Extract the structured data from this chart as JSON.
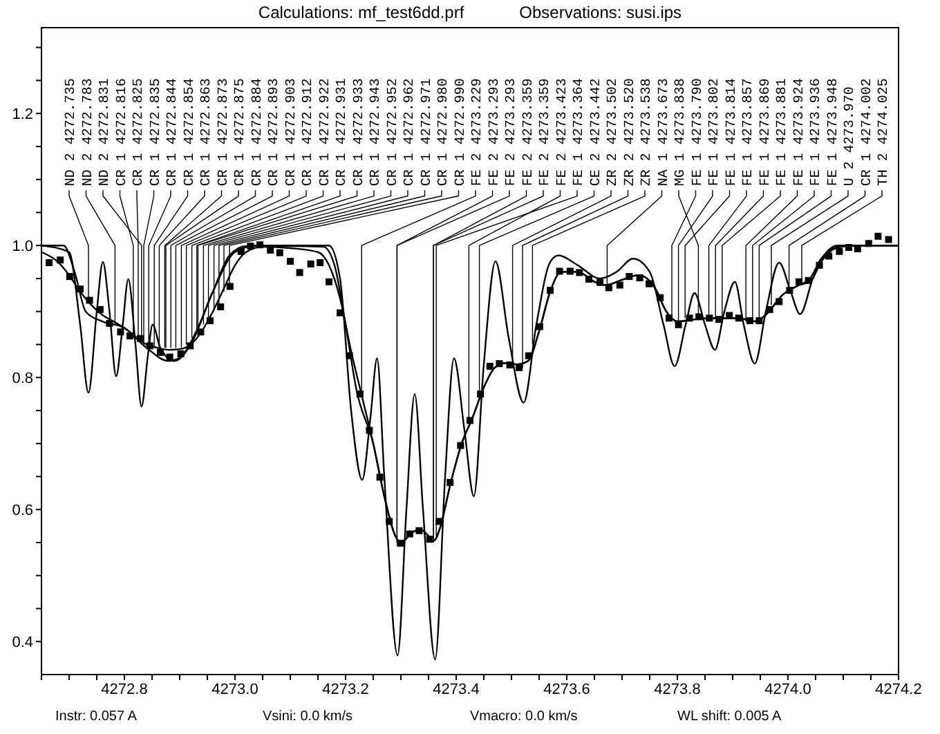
{
  "chart_data": {
    "type": "line",
    "title": "Calculations: mf_test6dd.prf",
    "subtitle": "Observations: susi.ips",
    "xlim": [
      4272.65,
      4274.2
    ],
    "ylim": [
      0.35,
      1.33
    ],
    "xticks": [
      {
        "value": 4272.65,
        "label": null
      },
      {
        "value": 4272.7,
        "label": null
      },
      {
        "value": 4272.75,
        "label": null
      },
      4272.8,
      {
        "value": 4272.85,
        "label": null
      },
      {
        "value": 4272.9,
        "label": null
      },
      {
        "value": 4272.95,
        "label": null
      },
      {
        "value": 4273,
        "label": "4273.0"
      },
      {
        "value": 4273.05,
        "label": null
      },
      {
        "value": 4273.1,
        "label": null
      },
      {
        "value": 4273.15,
        "label": null
      },
      4273.2,
      {
        "value": 4273.25,
        "label": null
      },
      {
        "value": 4273.3,
        "label": null
      },
      {
        "value": 4273.35,
        "label": null
      },
      4273.4,
      {
        "value": 4273.45,
        "label": null
      },
      {
        "value": 4273.5,
        "label": null
      },
      {
        "value": 4273.55,
        "label": null
      },
      4273.6,
      {
        "value": 4273.65,
        "label": null
      },
      {
        "value": 4273.7,
        "label": null
      },
      {
        "value": 4273.75,
        "label": null
      },
      4273.8,
      {
        "value": 4273.85,
        "label": null
      },
      {
        "value": 4273.9,
        "label": null
      },
      {
        "value": 4273.95,
        "label": null
      },
      {
        "value": 4274,
        "label": "4274.0"
      },
      {
        "value": 4274.05,
        "label": null
      },
      {
        "value": 4274.1,
        "label": null
      },
      {
        "value": 4274.15,
        "label": null
      },
      4274.2
    ],
    "yticks": [
      0.4,
      {
        "value": 0.45,
        "label": null
      },
      {
        "value": 0.5,
        "label": null
      },
      {
        "value": 0.55,
        "label": null
      },
      0.6,
      {
        "value": 0.65,
        "label": null
      },
      {
        "value": 0.7,
        "label": null
      },
      {
        "value": 0.75,
        "label": null
      },
      0.8,
      {
        "value": 0.85,
        "label": null
      },
      {
        "value": 0.9,
        "label": null
      },
      {
        "value": 0.95,
        "label": null
      },
      {
        "value": 1,
        "label": "1.0"
      },
      {
        "value": 1.05,
        "label": null
      },
      {
        "value": 1.1,
        "label": null
      },
      {
        "value": 1.15,
        "label": null
      },
      1.2,
      {
        "value": 1.25,
        "label": null
      },
      {
        "value": 1.3,
        "label": null
      }
    ],
    "series": [
      {
        "color": "#000000",
        "marker": "none",
        "x": [
          4272.65,
          4272.69,
          4272.71,
          4272.73,
          4272.76,
          4272.8,
          4272.84,
          4272.88,
          4272.9,
          4272.93,
          4272.96,
          4272.99,
          4273.02,
          4273.1,
          4273.16,
          4273.18,
          4273.2,
          4273.22,
          4273.25,
          4273.27,
          4273.29,
          4273.3,
          4273.32,
          4273.335,
          4273.35,
          4273.36,
          4273.37,
          4273.39,
          4273.41,
          4273.43,
          4273.45,
          4273.47,
          4273.49,
          4273.51,
          4273.53,
          4273.55,
          4273.57,
          4273.59,
          4273.62,
          4273.65,
          4273.67,
          4273.7,
          4273.73,
          4273.76,
          4273.78,
          4273.8,
          4273.83,
          4273.87,
          4273.91,
          4273.94,
          4273.96,
          4273.99,
          4274.02,
          4274.04,
          4274.06,
          4274.09,
          4274.12,
          4274.2
        ],
        "values": [
          1.0,
          1.0,
          0.96,
          0.9,
          0.885,
          0.875,
          0.845,
          0.825,
          0.83,
          0.87,
          0.93,
          0.985,
          0.999,
          0.999,
          0.998,
          0.97,
          0.88,
          0.78,
          0.7,
          0.62,
          0.56,
          0.55,
          0.565,
          0.57,
          0.56,
          0.553,
          0.57,
          0.64,
          0.7,
          0.74,
          0.785,
          0.815,
          0.822,
          0.82,
          0.825,
          0.87,
          0.93,
          0.96,
          0.96,
          0.945,
          0.94,
          0.948,
          0.955,
          0.935,
          0.9,
          0.885,
          0.888,
          0.89,
          0.89,
          0.885,
          0.895,
          0.925,
          0.94,
          0.95,
          0.98,
          0.998,
          1.0,
          1.0
        ]
      },
      {
        "color": "#000000",
        "marker": "none",
        "x": [
          4272.65,
          4272.68,
          4272.7,
          4272.72,
          4272.74,
          4272.76,
          4272.78,
          4272.8,
          4272.82,
          4272.84,
          4272.86,
          4272.88,
          4272.9,
          4272.92,
          4272.94,
          4272.96,
          4272.98,
          4273.0,
          4273.02,
          4273.05,
          4273.1,
          4273.15,
          4273.17,
          4273.19,
          4273.21,
          4273.23,
          4273.25,
          4273.27,
          4273.29,
          4273.3,
          4273.32,
          4273.335,
          4273.35,
          4273.36,
          4273.37,
          4273.39,
          4273.41,
          4273.43,
          4273.45,
          4273.47,
          4273.49,
          4273.51,
          4273.53,
          4273.55,
          4273.57,
          4273.59,
          4273.62,
          4273.65,
          4273.67,
          4273.7,
          4273.73,
          4273.76,
          4273.78,
          4273.8,
          4273.83,
          4273.87,
          4273.91,
          4273.94,
          4273.96,
          4273.99,
          4274.02,
          4274.04,
          4274.06,
          4274.09,
          4274.12,
          4274.2
        ],
        "values": [
          0.99,
          0.975,
          0.955,
          0.93,
          0.91,
          0.895,
          0.885,
          0.875,
          0.862,
          0.85,
          0.845,
          0.842,
          0.843,
          0.85,
          0.87,
          0.9,
          0.935,
          0.97,
          0.99,
          0.998,
          0.996,
          0.99,
          0.97,
          0.92,
          0.84,
          0.77,
          0.7,
          0.62,
          0.56,
          0.55,
          0.565,
          0.57,
          0.56,
          0.553,
          0.57,
          0.64,
          0.7,
          0.74,
          0.785,
          0.815,
          0.822,
          0.82,
          0.825,
          0.87,
          0.93,
          0.96,
          0.96,
          0.945,
          0.94,
          0.948,
          0.955,
          0.935,
          0.9,
          0.885,
          0.888,
          0.89,
          0.89,
          0.885,
          0.895,
          0.925,
          0.94,
          0.945,
          0.975,
          0.997,
          1.0,
          1.0
        ]
      },
      {
        "color": "#000000",
        "marker": "none",
        "x": [
          4272.65,
          4272.7,
          4272.72,
          4272.735,
          4272.75,
          4272.761,
          4272.773,
          4272.785,
          4272.797,
          4272.807,
          4272.82,
          4272.831,
          4272.842,
          4272.851,
          4272.865,
          4272.89,
          4272.92,
          4272.96,
          4273.0,
          4273.04,
          4273.17,
          4273.19,
          4273.21,
          4273.23,
          4273.245,
          4273.257,
          4273.27,
          4273.294,
          4273.31,
          4273.325,
          4273.34,
          4273.362,
          4273.38,
          4273.396,
          4273.415,
          4273.432,
          4273.45,
          4273.471,
          4273.495,
          4273.522,
          4273.545,
          4273.57,
          4273.585,
          4273.62,
          4273.66,
          4273.69,
          4273.72,
          4273.75,
          4273.775,
          4273.795,
          4273.815,
          4273.831,
          4273.85,
          4273.868,
          4273.885,
          4273.904,
          4273.92,
          4273.94,
          4273.96,
          4273.984,
          4274.005,
          4274.022,
          4274.045,
          4274.07,
          4274.09,
          4274.2
        ],
        "values": [
          1.0,
          0.99,
          0.88,
          0.777,
          0.9,
          0.975,
          0.9,
          0.802,
          0.88,
          0.949,
          0.85,
          0.756,
          0.83,
          0.88,
          0.845,
          0.825,
          0.85,
          0.93,
          0.99,
          1.0,
          1.0,
          0.95,
          0.75,
          0.645,
          0.74,
          0.829,
          0.65,
          0.379,
          0.6,
          0.775,
          0.6,
          0.373,
          0.65,
          0.829,
          0.72,
          0.62,
          0.82,
          0.976,
          0.86,
          0.762,
          0.88,
          0.975,
          0.985,
          0.97,
          0.95,
          0.96,
          0.98,
          0.96,
          0.88,
          0.817,
          0.88,
          0.928,
          0.88,
          0.842,
          0.9,
          0.945,
          0.88,
          0.821,
          0.9,
          0.974,
          0.93,
          0.896,
          0.95,
          0.99,
          1.0,
          1.0
        ]
      },
      {
        "type": "scatter",
        "color": "#000000",
        "marker": "square",
        "x": [
          4272.664,
          4272.684,
          4272.701,
          4272.72,
          4272.737,
          4272.756,
          4272.773,
          4272.793,
          4272.81,
          4272.829,
          4272.846,
          4272.865,
          4272.882,
          4272.902,
          4272.919,
          4272.938,
          4272.955,
          4272.974,
          4272.991,
          4273.011,
          4273.028,
          4273.045,
          4273.064,
          4273.081,
          4273.1,
          4273.117,
          4273.137,
          4273.154,
          4273.17,
          4273.19,
          4273.207,
          4273.226,
          4273.243,
          4273.262,
          4273.279,
          4273.299,
          4273.316,
          4273.333,
          4273.352,
          4273.369,
          4273.389,
          4273.408,
          4273.425,
          4273.444,
          4273.461,
          4273.478,
          4273.497,
          4273.514,
          4273.531,
          4273.551,
          4273.57,
          4273.587,
          4273.606,
          4273.623,
          4273.64,
          4273.66,
          4273.676,
          4273.696,
          4273.713,
          4273.732,
          4273.749,
          4273.769,
          4273.785,
          4273.802,
          4273.822,
          4273.839,
          4273.858,
          4273.875,
          4273.894,
          4273.911,
          4273.931,
          4273.948,
          4273.967,
          4273.984,
          4274.003,
          4274.02,
          4274.037,
          4274.057,
          4274.074,
          4274.093,
          4274.11,
          4274.126,
          4274.146,
          4274.163,
          4274.182
        ],
        "values": [
          0.974,
          0.978,
          0.953,
          0.934,
          0.917,
          0.903,
          0.882,
          0.869,
          0.863,
          0.859,
          0.848,
          0.838,
          0.831,
          0.836,
          0.848,
          0.869,
          0.886,
          0.907,
          0.938,
          0.991,
          0.999,
          1.001,
          0.993,
          0.989,
          0.976,
          0.959,
          0.972,
          0.974,
          0.945,
          0.898,
          0.833,
          0.775,
          0.72,
          0.649,
          0.582,
          0.549,
          0.563,
          0.568,
          0.555,
          0.582,
          0.641,
          0.697,
          0.735,
          0.775,
          0.817,
          0.821,
          0.819,
          0.815,
          0.833,
          0.877,
          0.932,
          0.961,
          0.961,
          0.959,
          0.949,
          0.944,
          0.936,
          0.94,
          0.953,
          0.951,
          0.942,
          0.921,
          0.89,
          0.88,
          0.89,
          0.892,
          0.89,
          0.888,
          0.894,
          0.89,
          0.886,
          0.886,
          0.903,
          0.915,
          0.932,
          0.945,
          0.947,
          0.97,
          0.984,
          0.991,
          0.997,
          0.995,
          1.003,
          1.014,
          1.009
        ]
      }
    ],
    "annotations": [
      {
        "text": "ND 2 4272.735",
        "x": 4272.735,
        "y": 0.92
      },
      {
        "text": "ND 2 4272.783",
        "x": 4272.783,
        "y": 0.88
      },
      {
        "text": "ND 2 4272.831",
        "x": 4272.831,
        "y": 0.85
      },
      {
        "text": "CR 1 4272.816",
        "x": 4272.816,
        "y": 0.86
      },
      {
        "text": "CR 1 4272.825",
        "x": 4272.825,
        "y": 0.855
      },
      {
        "text": "CR 1 4272.835",
        "x": 4272.835,
        "y": 0.85
      },
      {
        "text": "CR 1 4272.844",
        "x": 4272.844,
        "y": 0.847
      },
      {
        "text": "CR 1 4272.854",
        "x": 4272.854,
        "y": 0.845
      },
      {
        "text": "CR 1 4272.863",
        "x": 4272.863,
        "y": 0.845
      },
      {
        "text": "CR 1 4272.873",
        "x": 4272.873,
        "y": 0.845
      },
      {
        "text": "CR 1 4272.875",
        "x": 4272.875,
        "y": 0.845
      },
      {
        "text": "CR 1 4272.884",
        "x": 4272.884,
        "y": 0.845
      },
      {
        "text": "CR 1 4272.893",
        "x": 4272.893,
        "y": 0.845
      },
      {
        "text": "CR 1 4272.903",
        "x": 4272.903,
        "y": 0.845
      },
      {
        "text": "CR 1 4272.912",
        "x": 4272.912,
        "y": 0.85
      },
      {
        "text": "CR 1 4272.922",
        "x": 4272.922,
        "y": 0.86
      },
      {
        "text": "CR 1 4272.931",
        "x": 4272.931,
        "y": 0.87
      },
      {
        "text": "CR 1 4272.933",
        "x": 4272.933,
        "y": 0.87
      },
      {
        "text": "CR 1 4272.943",
        "x": 4272.943,
        "y": 0.88
      },
      {
        "text": "CR 1 4272.952",
        "x": 4272.952,
        "y": 0.89
      },
      {
        "text": "CR 1 4272.962",
        "x": 4272.962,
        "y": 0.9
      },
      {
        "text": "CR 1 4272.971",
        "x": 4272.971,
        "y": 0.91
      },
      {
        "text": "CR 1 4272.980",
        "x": 4272.98,
        "y": 0.93
      },
      {
        "text": "CR 1 4272.990",
        "x": 4272.99,
        "y": 0.94
      },
      {
        "text": "FE 2 4273.229",
        "x": 4273.229,
        "y": 0.78
      },
      {
        "text": "FE 2 4273.293",
        "x": 4273.293,
        "y": 0.55
      },
      {
        "text": "FE 2 4273.293",
        "x": 4273.293,
        "y": 0.55
      },
      {
        "text": "FE 2 4273.359",
        "x": 4273.359,
        "y": 0.55
      },
      {
        "text": "FE 2 4273.359",
        "x": 4273.359,
        "y": 0.55
      },
      {
        "text": "FE 2 4273.423",
        "x": 4273.423,
        "y": 0.74
      },
      {
        "text": "FE 1 4273.364",
        "x": 4273.364,
        "y": 0.56
      },
      {
        "text": "CE 2 4273.442",
        "x": 4273.442,
        "y": 0.78
      },
      {
        "text": "ZR 2 4273.502",
        "x": 4273.502,
        "y": 0.815
      },
      {
        "text": "ZR 2 4273.520",
        "x": 4273.52,
        "y": 0.815
      },
      {
        "text": "ZR 2 4273.538",
        "x": 4273.538,
        "y": 0.85
      },
      {
        "text": "NA 1 4273.673",
        "x": 4273.673,
        "y": 0.94
      },
      {
        "text": "MG 1 4273.838",
        "x": 4273.838,
        "y": 0.89
      },
      {
        "text": "FE 1 4273.790",
        "x": 4273.79,
        "y": 0.885
      },
      {
        "text": "FE 1 4273.802",
        "x": 4273.802,
        "y": 0.885
      },
      {
        "text": "FE 1 4273.814",
        "x": 4273.814,
        "y": 0.89
      },
      {
        "text": "FE 1 4273.857",
        "x": 4273.857,
        "y": 0.89
      },
      {
        "text": "FE 1 4273.869",
        "x": 4273.869,
        "y": 0.89
      },
      {
        "text": "FE 1 4273.881",
        "x": 4273.881,
        "y": 0.89
      },
      {
        "text": "FE 1 4273.924",
        "x": 4273.924,
        "y": 0.885
      },
      {
        "text": "FE 1 4273.936",
        "x": 4273.936,
        "y": 0.885
      },
      {
        "text": "FE 1 4273.948",
        "x": 4273.948,
        "y": 0.89
      },
      {
        "text": "U 2 4273.970",
        "x": 4273.97,
        "y": 0.91
      },
      {
        "text": "CR 1 4274.002",
        "x": 4274.002,
        "y": 0.93
      },
      {
        "text": "TH 2 4274.025",
        "x": 4274.025,
        "y": 0.945
      },
      "Instr: 0.057 A",
      "Vsini: 0.0 km/s",
      "Vmacro: 0.0 km/s",
      "WL shift: 0.005 A"
    ]
  }
}
